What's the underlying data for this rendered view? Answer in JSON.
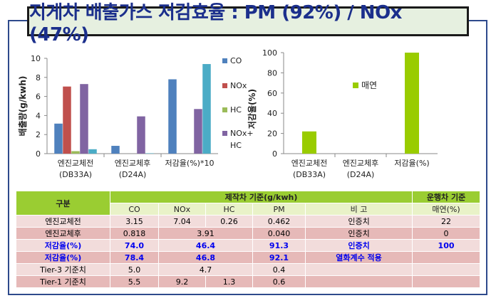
{
  "title": "지게차 배출가스 저감효율 : PM (92%) / NOx (47%)",
  "colors": {
    "CO": "#4f81bd",
    "NOx": "#c0504d",
    "HC": "#9bbb59",
    "NOxHC": "#8064a2",
    "PM": "#4bacc6",
    "green": "#99cc00"
  },
  "chart_data": [
    {
      "type": "bar",
      "ylabel": "배출량(g/kwh)",
      "ylim": [
        0,
        10
      ],
      "yticks": [
        "0",
        "2",
        "4",
        "6",
        "8",
        "10"
      ],
      "categories": [
        [
          "엔진교체전",
          "(DB33A)"
        ],
        [
          "엔진교체후",
          "(D24A)"
        ],
        [
          "저감율(%)*10",
          ""
        ]
      ],
      "series": [
        {
          "name": "CO",
          "values": [
            3.15,
            0.818,
            7.8
          ]
        },
        {
          "name": "NOx",
          "values": [
            7.04,
            null,
            null
          ]
        },
        {
          "name": "HC",
          "values": [
            0.26,
            null,
            null
          ]
        },
        {
          "name": "NOx+HC",
          "values": [
            7.3,
            3.91,
            4.68
          ]
        },
        {
          "name": "PM",
          "values": [
            0.462,
            0.04,
            9.4
          ]
        }
      ],
      "legend": [
        "CO",
        "NOx",
        "HC",
        "NOx+",
        "HC"
      ]
    },
    {
      "type": "bar",
      "ylabel": "저감율(%)",
      "ylim": [
        0,
        100
      ],
      "yticks": [
        "0",
        "20",
        "40",
        "60",
        "80",
        "100"
      ],
      "categories": [
        [
          "엔진교체전",
          "(DB33A)"
        ],
        [
          "엔진교체후",
          "(D24A)"
        ],
        [
          "저감율(%)",
          ""
        ]
      ],
      "series": [
        {
          "name": "매연",
          "values": [
            22,
            0,
            100
          ]
        }
      ],
      "legend": [
        "매연"
      ]
    }
  ],
  "table": {
    "h_group": "구분",
    "h_main": "제작차 기준(g/kwh)",
    "h_run": "운행차 기준",
    "cols": [
      "CO",
      "NOx",
      "HC",
      "PM",
      "비 고",
      "매연(%)"
    ],
    "rows": [
      {
        "label": "엔진교체전",
        "co": "3.15",
        "nox": "7.04",
        "hc": "0.26",
        "merged": "",
        "pm": "0.462",
        "note": "인증치",
        "smoke": "22",
        "style": "rowA",
        "blue": false
      },
      {
        "label": "엔진교체후",
        "co": "0.818",
        "nox": "",
        "hc": "",
        "merged": "3.91",
        "pm": "0.040",
        "note": "인증치",
        "smoke": "0",
        "style": "rowB",
        "blue": false
      },
      {
        "label": "저감율(%)",
        "co": "74.0",
        "nox": "",
        "hc": "",
        "merged": "46.4",
        "pm": "91.3",
        "note": "인증치",
        "smoke": "100",
        "style": "rowA",
        "blue": true
      },
      {
        "label": "저감율(%)",
        "co": "78.4",
        "nox": "",
        "hc": "",
        "merged": "46.8",
        "pm": "92.1",
        "note": "열화계수 적용",
        "smoke": "",
        "style": "rowB",
        "blue": true
      },
      {
        "label": "Tier-3 기준치",
        "co": "5.0",
        "nox": "",
        "hc": "",
        "merged": "4.7",
        "pm": "0.4",
        "note": "",
        "smoke": "",
        "style": "rowA",
        "blue": false
      },
      {
        "label": "Tier-1 기준치",
        "co": "5.5",
        "nox": "9.2",
        "hc": "1.3",
        "merged": "",
        "pm": "0.6",
        "note": "",
        "smoke": "",
        "style": "rowB",
        "blue": false
      }
    ]
  }
}
